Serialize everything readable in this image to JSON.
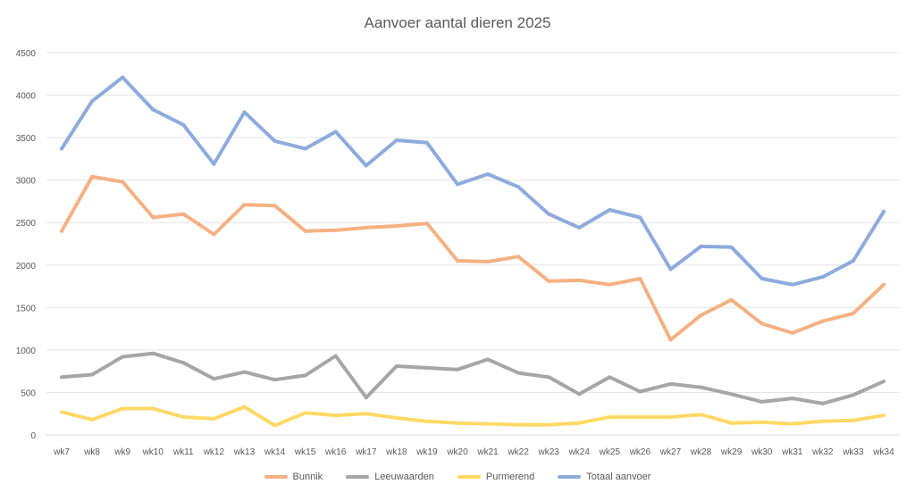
{
  "chart_data": {
    "type": "line",
    "title": "Aanvoer aantal dieren 2025",
    "xlabel": "",
    "ylabel": "",
    "ylim": [
      0,
      4500
    ],
    "yticks": [
      0,
      500,
      1000,
      1500,
      2000,
      2500,
      3000,
      3500,
      4000,
      4500
    ],
    "grid": true,
    "legend_position": "bottom",
    "categories": [
      "wk7",
      "wk8",
      "wk9",
      "wk10",
      "wk11",
      "wk12",
      "wk13",
      "wk14",
      "wk15",
      "wk16",
      "wk17",
      "wk18",
      "wk19",
      "wk20",
      "wk21",
      "wk22",
      "wk23",
      "wk24",
      "wk25",
      "wk26",
      "wk27",
      "wk28",
      "wk29",
      "wk30",
      "wk31",
      "wk32",
      "wk33",
      "wk34"
    ],
    "series": [
      {
        "name": "Bunnik",
        "color": "#f4b183",
        "values": [
          2400,
          3040,
          2980,
          2560,
          2600,
          2360,
          2710,
          2700,
          2400,
          2410,
          2440,
          2460,
          2490,
          2050,
          2040,
          2100,
          1810,
          1820,
          1770,
          1840,
          1120,
          1410,
          1590,
          1310,
          1200,
          1340,
          1430,
          1770
        ]
      },
      {
        "name": "Leeuwaarden",
        "color": "#a6a6a6",
        "values": [
          680,
          710,
          920,
          960,
          850,
          660,
          740,
          650,
          700,
          930,
          440,
          810,
          790,
          770,
          890,
          730,
          680,
          480,
          680,
          510,
          600,
          560,
          480,
          390,
          430,
          370,
          470,
          630
        ]
      },
      {
        "name": "Purmerend",
        "color": "#ffd966",
        "values": [
          270,
          180,
          310,
          310,
          210,
          190,
          330,
          110,
          260,
          230,
          250,
          200,
          160,
          140,
          130,
          120,
          120,
          140,
          210,
          210,
          210,
          240,
          140,
          150,
          130,
          160,
          170,
          230
        ]
      },
      {
        "name": "Totaal aanvoer",
        "color": "#8faadc",
        "values": [
          3370,
          3930,
          4210,
          3830,
          3650,
          3190,
          3800,
          3460,
          3370,
          3570,
          3170,
          3470,
          3440,
          2950,
          3070,
          2920,
          2600,
          2440,
          2650,
          2560,
          1950,
          2220,
          2210,
          1840,
          1770,
          1860,
          2050,
          2630
        ]
      }
    ]
  }
}
